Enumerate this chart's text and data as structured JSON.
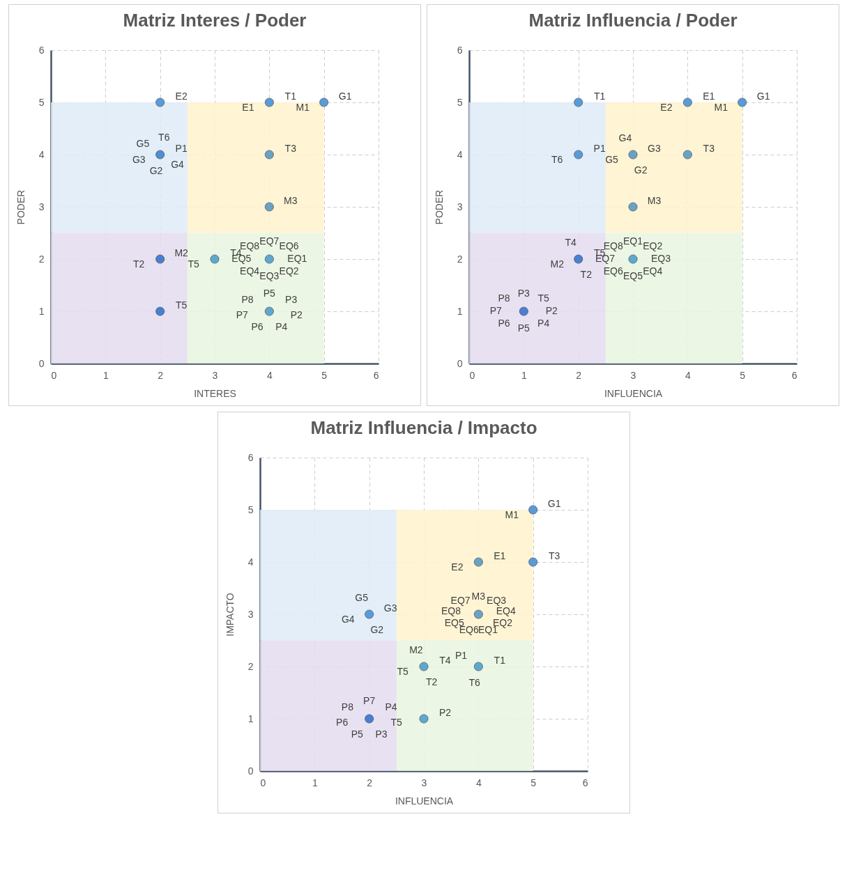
{
  "chart_data": [
    {
      "type": "scatter",
      "title": "Matriz Interes / Poder",
      "xlabel": "INTERES",
      "ylabel": "PODER",
      "xlim": [
        0,
        6
      ],
      "ylim": [
        0,
        6
      ],
      "xticks": [
        0,
        1,
        2,
        3,
        4,
        5,
        6
      ],
      "yticks": [
        0,
        1,
        2,
        3,
        4,
        5,
        6
      ],
      "grid": true,
      "marker": "circle",
      "x": [
        2,
        4,
        5,
        2,
        4,
        4,
        2,
        3,
        4,
        2,
        4
      ],
      "values": [
        5,
        5,
        5,
        4,
        4,
        3,
        2,
        2,
        2,
        1,
        1
      ],
      "colors": [
        "#5b9bd5",
        "#5b9bd5",
        "#5b9bd5",
        "#4f8fcf",
        "#6aa2c2",
        "#6aa2c2",
        "#4a7fd0",
        "#5fa8cc",
        "#5fa8cc",
        "#4a7fd0",
        "#5fa8cc"
      ],
      "bands": [
        {
          "axis": "y",
          "from": 2.5,
          "to": 5,
          "color": "#deebf7"
        },
        {
          "axis": "x",
          "from": 2.5,
          "to": 5,
          "color": "#fff2cc"
        },
        {
          "axis": "y",
          "from": 0,
          "to": 2.5,
          "color": "#e9f5df"
        },
        {
          "axis": "x",
          "from": 0,
          "to": 2.5,
          "color": "#e4dcef"
        }
      ],
      "annotations": [
        {
          "text": "E2",
          "x": 2,
          "y": 5
        },
        {
          "text": "T1",
          "x": 4,
          "y": 5
        },
        {
          "text": "E1",
          "x": 4,
          "y": 5
        },
        {
          "text": "G1",
          "x": 5,
          "y": 5
        },
        {
          "text": "M1",
          "x": 5,
          "y": 5
        },
        {
          "text": "P1",
          "x": 2,
          "y": 4
        },
        {
          "text": "G4",
          "x": 2,
          "y": 4
        },
        {
          "text": "G2",
          "x": 2,
          "y": 4
        },
        {
          "text": "G3",
          "x": 2,
          "y": 4
        },
        {
          "text": "G5",
          "x": 2,
          "y": 4
        },
        {
          "text": "T6",
          "x": 2,
          "y": 4
        },
        {
          "text": "T3",
          "x": 4,
          "y": 4
        },
        {
          "text": "M3",
          "x": 4,
          "y": 3
        },
        {
          "text": "M2",
          "x": 2,
          "y": 2
        },
        {
          "text": "T2",
          "x": 2,
          "y": 2
        },
        {
          "text": "T4",
          "x": 3,
          "y": 2
        },
        {
          "text": "T5",
          "x": 3,
          "y": 2
        },
        {
          "text": "EQ7",
          "x": 4,
          "y": 2
        },
        {
          "text": "EQ6",
          "x": 4,
          "y": 2
        },
        {
          "text": "EQ1",
          "x": 4,
          "y": 2
        },
        {
          "text": "EQ2",
          "x": 4,
          "y": 2
        },
        {
          "text": "EQ3",
          "x": 4,
          "y": 2
        },
        {
          "text": "EQ4",
          "x": 4,
          "y": 2
        },
        {
          "text": "EQ5",
          "x": 4,
          "y": 2
        },
        {
          "text": "EQ8",
          "x": 4,
          "y": 2
        },
        {
          "text": "T5",
          "x": 2,
          "y": 1
        },
        {
          "text": "P5",
          "x": 4,
          "y": 1
        },
        {
          "text": "P3",
          "x": 4,
          "y": 1
        },
        {
          "text": "P2",
          "x": 4,
          "y": 1
        },
        {
          "text": "P4",
          "x": 4,
          "y": 1
        },
        {
          "text": "P6",
          "x": 4,
          "y": 1
        },
        {
          "text": "P7",
          "x": 4,
          "y": 1
        },
        {
          "text": "P8",
          "x": 4,
          "y": 1
        }
      ]
    },
    {
      "type": "scatter",
      "title": "Matriz Influencia / Poder",
      "xlabel": "INFLUENCIA",
      "ylabel": "PODER",
      "xlim": [
        0,
        6
      ],
      "ylim": [
        0,
        6
      ],
      "xticks": [
        0,
        1,
        2,
        3,
        4,
        5,
        6
      ],
      "yticks": [
        0,
        1,
        2,
        3,
        4,
        5,
        6
      ],
      "grid": true,
      "marker": "circle",
      "x": [
        2,
        4,
        5,
        2,
        3,
        4,
        3,
        2,
        3,
        1
      ],
      "values": [
        5,
        5,
        5,
        4,
        4,
        4,
        3,
        2,
        2,
        1
      ],
      "colors": [
        "#5b9bd5",
        "#5b9bd5",
        "#5b9bd5",
        "#5b9bd5",
        "#6aa2c2",
        "#6aa2c2",
        "#6aa2c2",
        "#4a7fd0",
        "#5fa8cc",
        "#4a7fd0"
      ],
      "bands": [
        {
          "axis": "y",
          "from": 2.5,
          "to": 5,
          "color": "#deebf7"
        },
        {
          "axis": "x",
          "from": 2.5,
          "to": 5,
          "color": "#fff2cc"
        },
        {
          "axis": "y",
          "from": 0,
          "to": 2.5,
          "color": "#e9f5df"
        },
        {
          "axis": "x",
          "from": 0,
          "to": 2.5,
          "color": "#e4dcef"
        }
      ],
      "annotations": [
        {
          "text": "T1",
          "x": 2,
          "y": 5
        },
        {
          "text": "E1",
          "x": 4,
          "y": 5
        },
        {
          "text": "E2",
          "x": 4,
          "y": 5
        },
        {
          "text": "G1",
          "x": 5,
          "y": 5
        },
        {
          "text": "M1",
          "x": 5,
          "y": 5
        },
        {
          "text": "P1",
          "x": 2,
          "y": 4
        },
        {
          "text": "T6",
          "x": 2,
          "y": 4
        },
        {
          "text": "G3",
          "x": 3,
          "y": 4
        },
        {
          "text": "G2",
          "x": 3,
          "y": 4
        },
        {
          "text": "G5",
          "x": 3,
          "y": 4
        },
        {
          "text": "G4",
          "x": 3,
          "y": 4
        },
        {
          "text": "T3",
          "x": 4,
          "y": 4
        },
        {
          "text": "M3",
          "x": 3,
          "y": 3
        },
        {
          "text": "T5",
          "x": 2,
          "y": 2
        },
        {
          "text": "T2",
          "x": 2,
          "y": 2
        },
        {
          "text": "M2",
          "x": 2,
          "y": 2
        },
        {
          "text": "T4",
          "x": 2,
          "y": 2
        },
        {
          "text": "EQ1",
          "x": 3,
          "y": 2
        },
        {
          "text": "EQ2",
          "x": 3,
          "y": 2
        },
        {
          "text": "EQ3",
          "x": 3,
          "y": 2
        },
        {
          "text": "EQ4",
          "x": 3,
          "y": 2
        },
        {
          "text": "EQ5",
          "x": 3,
          "y": 2
        },
        {
          "text": "EQ6",
          "x": 3,
          "y": 2
        },
        {
          "text": "EQ7",
          "x": 3,
          "y": 2
        },
        {
          "text": "EQ8",
          "x": 3,
          "y": 2
        },
        {
          "text": "P3",
          "x": 1,
          "y": 1
        },
        {
          "text": "T5",
          "x": 1,
          "y": 1
        },
        {
          "text": "P2",
          "x": 1,
          "y": 1
        },
        {
          "text": "P4",
          "x": 1,
          "y": 1
        },
        {
          "text": "P5",
          "x": 1,
          "y": 1
        },
        {
          "text": "P6",
          "x": 1,
          "y": 1
        },
        {
          "text": "P7",
          "x": 1,
          "y": 1
        },
        {
          "text": "P8",
          "x": 1,
          "y": 1
        }
      ]
    },
    {
      "type": "scatter",
      "title": "Matriz Influencia / Impacto",
      "xlabel": "INFLUENCIA",
      "ylabel": "IMPACTO",
      "xlim": [
        0,
        6
      ],
      "ylim": [
        0,
        6
      ],
      "xticks": [
        0,
        1,
        2,
        3,
        4,
        5,
        6
      ],
      "yticks": [
        0,
        1,
        2,
        3,
        4,
        5,
        6
      ],
      "grid": true,
      "marker": "circle",
      "x": [
        5,
        4,
        5,
        2,
        4,
        3,
        4,
        2,
        3
      ],
      "values": [
        5,
        4,
        4,
        3,
        3,
        2,
        2,
        1,
        1
      ],
      "colors": [
        "#5b9bd5",
        "#6aa2c2",
        "#5b9bd5",
        "#5b9bd5",
        "#6aa2c2",
        "#5fa8cc",
        "#5fa8cc",
        "#4a7fd0",
        "#5fa8cc"
      ],
      "bands": [
        {
          "axis": "y",
          "from": 2.5,
          "to": 5,
          "color": "#deebf7"
        },
        {
          "axis": "x",
          "from": 2.5,
          "to": 5,
          "color": "#fff2cc"
        },
        {
          "axis": "y",
          "from": 0,
          "to": 2.5,
          "color": "#e9f5df"
        },
        {
          "axis": "x",
          "from": 0,
          "to": 2.5,
          "color": "#e4dcef"
        }
      ],
      "annotations": [
        {
          "text": "G1",
          "x": 5,
          "y": 5
        },
        {
          "text": "M1",
          "x": 5,
          "y": 5
        },
        {
          "text": "E1",
          "x": 4,
          "y": 4
        },
        {
          "text": "E2",
          "x": 4,
          "y": 4
        },
        {
          "text": "T3",
          "x": 5,
          "y": 4
        },
        {
          "text": "G3",
          "x": 2,
          "y": 3
        },
        {
          "text": "G2",
          "x": 2,
          "y": 3
        },
        {
          "text": "G4",
          "x": 2,
          "y": 3
        },
        {
          "text": "G5",
          "x": 2,
          "y": 3
        },
        {
          "text": "M3",
          "x": 4,
          "y": 3
        },
        {
          "text": "EQ3",
          "x": 4,
          "y": 3
        },
        {
          "text": "EQ4",
          "x": 4,
          "y": 3
        },
        {
          "text": "EQ2",
          "x": 4,
          "y": 3
        },
        {
          "text": "EQ1",
          "x": 4,
          "y": 3
        },
        {
          "text": "EQ6",
          "x": 4,
          "y": 3
        },
        {
          "text": "EQ5",
          "x": 4,
          "y": 3
        },
        {
          "text": "EQ8",
          "x": 4,
          "y": 3
        },
        {
          "text": "EQ7",
          "x": 4,
          "y": 3
        },
        {
          "text": "T4",
          "x": 3,
          "y": 2
        },
        {
          "text": "T2",
          "x": 3,
          "y": 2
        },
        {
          "text": "T5",
          "x": 3,
          "y": 2
        },
        {
          "text": "M2",
          "x": 3,
          "y": 2
        },
        {
          "text": "T1",
          "x": 4,
          "y": 2
        },
        {
          "text": "T6",
          "x": 4,
          "y": 2
        },
        {
          "text": "P1",
          "x": 4,
          "y": 2
        },
        {
          "text": "P7",
          "x": 2,
          "y": 1
        },
        {
          "text": "P4",
          "x": 2,
          "y": 1
        },
        {
          "text": "T5",
          "x": 2,
          "y": 1
        },
        {
          "text": "P3",
          "x": 2,
          "y": 1
        },
        {
          "text": "P5",
          "x": 2,
          "y": 1
        },
        {
          "text": "P6",
          "x": 2,
          "y": 1
        },
        {
          "text": "P8",
          "x": 2,
          "y": 1
        },
        {
          "text": "P2",
          "x": 3,
          "y": 1
        }
      ]
    }
  ]
}
